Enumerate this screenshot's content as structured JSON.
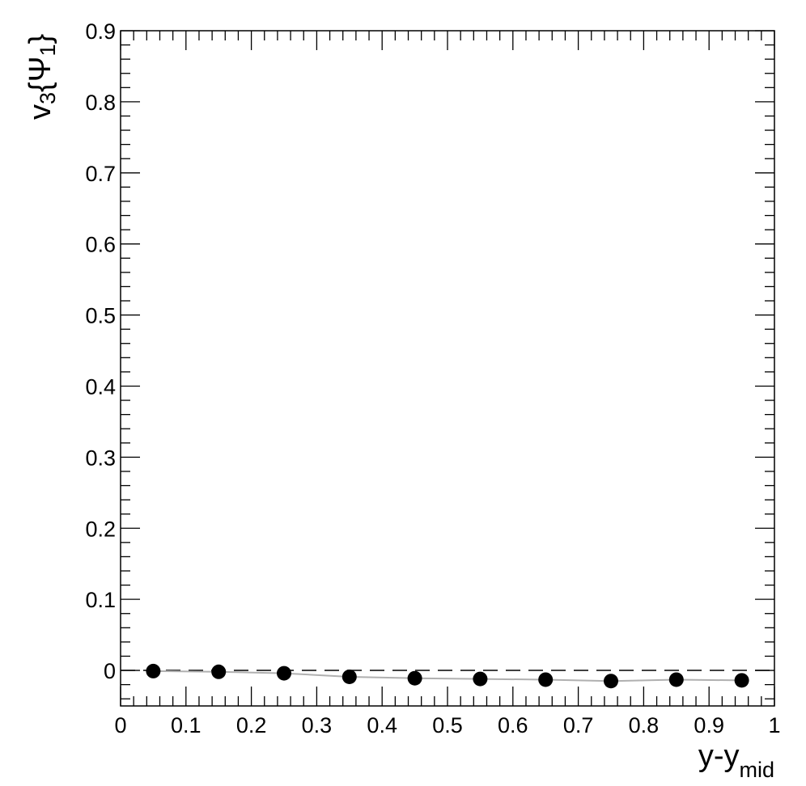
{
  "chart_data": {
    "type": "scatter",
    "xlabel": "y-y",
    "xlabel_sub": "mid",
    "ylabel_main": "v",
    "ylabel_sub3": "3",
    "ylabel_brace_open": "{",
    "ylabel_psi": "Ψ",
    "ylabel_sub1": "1",
    "ylabel_brace_close": "}",
    "xlim": [
      0,
      1
    ],
    "ylim": [
      -0.05,
      0.9
    ],
    "x_ticks": [
      "0",
      "0.1",
      "0.2",
      "0.3",
      "0.4",
      "0.5",
      "0.6",
      "0.7",
      "0.8",
      "0.9",
      "1"
    ],
    "y_ticks": [
      "0",
      "0.1",
      "0.2",
      "0.3",
      "0.4",
      "0.5",
      "0.6",
      "0.7",
      "0.8",
      "0.9"
    ],
    "reference_line_y": 0,
    "series": [
      {
        "x": [
          0.05,
          0.15,
          0.25,
          0.35,
          0.45,
          0.55,
          0.65,
          0.75,
          0.85,
          0.95
        ],
        "y": [
          -0.001,
          -0.002,
          -0.004,
          -0.009,
          -0.011,
          -0.012,
          -0.013,
          -0.015,
          -0.013,
          -0.014
        ]
      }
    ],
    "colors": {
      "markers": "#000000",
      "reference_line": "#000000",
      "band": "#b0b0b0"
    }
  }
}
